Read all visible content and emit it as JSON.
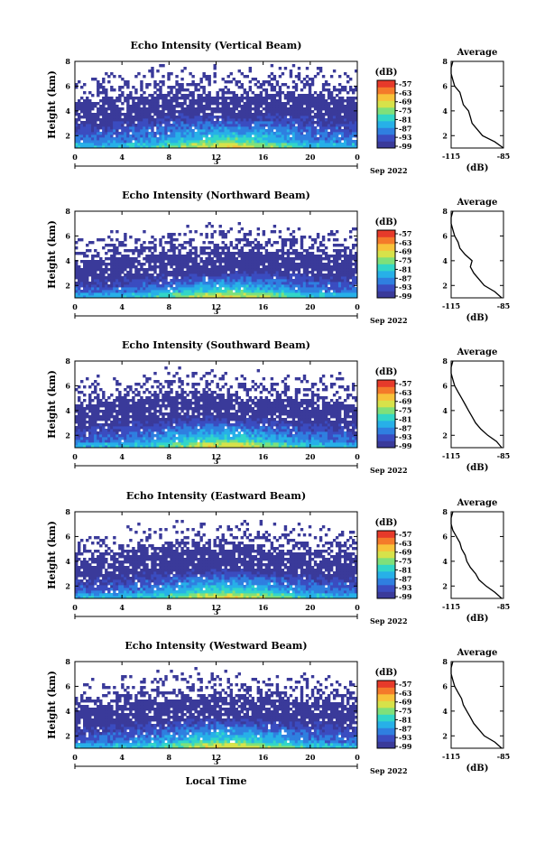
{
  "chart_data": [
    {
      "type": "heatmap",
      "title": "Echo Intensity (Vertical Beam)",
      "ylabel": "Height (km)",
      "xlabel": "",
      "x_ticks": [
        "0",
        "4",
        "8",
        "12",
        "16",
        "20",
        "0"
      ],
      "y_ticks": [
        "2",
        "4",
        "6",
        "8"
      ],
      "date_marker": "3",
      "date_label": "Sep 2022",
      "xlim": [
        0,
        24
      ],
      "ylim": [
        1,
        8
      ],
      "colorbar": {
        "unit": "(dB)",
        "ticks": [
          "-57",
          "-63",
          "-69",
          "-75",
          "-81",
          "-87",
          "-93",
          "-99"
        ]
      },
      "base_level": [
        3.05,
        3.1,
        3.2,
        3.3,
        3.4,
        3.5,
        3.6,
        3.7,
        3.75,
        3.8,
        3.75,
        3.7,
        3.65,
        3.6,
        3.55,
        3.6,
        3.7,
        3.8,
        3.85,
        3.8,
        3.7,
        3.6,
        3.55,
        3.5,
        3.45
      ],
      "average": {
        "title": "Average",
        "xlabel": "(dB)",
        "x_ticks": [
          "-115",
          "-85"
        ],
        "xlim": [
          -115,
          -85
        ],
        "y_ticks": [
          "2",
          "4",
          "6",
          "8"
        ],
        "ylim": [
          1,
          8
        ],
        "height_km": [
          1.0,
          1.5,
          2.0,
          2.5,
          3.0,
          3.5,
          4.0,
          4.5,
          5.0,
          5.5,
          6.0,
          6.5,
          7.0,
          7.5,
          8.0
        ],
        "db": [
          -85,
          -90,
          -97,
          -100,
          -103,
          -104,
          -105,
          -108,
          -109,
          -110,
          -113,
          -114,
          -115,
          -115,
          -114
        ]
      }
    },
    {
      "type": "heatmap",
      "title": "Echo Intensity (Northward Beam)",
      "ylabel": "Height (km)",
      "xlabel": "",
      "x_ticks": [
        "0",
        "4",
        "8",
        "12",
        "16",
        "20",
        "0"
      ],
      "y_ticks": [
        "2",
        "4",
        "6",
        "8"
      ],
      "date_marker": "3",
      "date_label": "Sep 2022",
      "xlim": [
        0,
        24
      ],
      "ylim": [
        1,
        8
      ],
      "colorbar": {
        "unit": "(dB)",
        "ticks": [
          "-57",
          "-63",
          "-69",
          "-75",
          "-81",
          "-87",
          "-93",
          "-99"
        ]
      },
      "base_level": [
        2.3,
        2.4,
        2.5,
        2.6,
        2.7,
        2.75,
        2.8,
        2.85,
        2.9,
        2.95,
        3.0,
        3.05,
        3.1,
        3.15,
        3.2,
        3.2,
        3.15,
        3.1,
        3.05,
        3.0,
        2.95,
        2.9,
        2.85,
        2.8,
        2.75
      ],
      "average": {
        "title": "Average",
        "xlabel": "(dB)",
        "x_ticks": [
          "-115",
          "-85"
        ],
        "xlim": [
          -115,
          -85
        ],
        "y_ticks": [
          "2",
          "4",
          "6",
          "8"
        ],
        "ylim": [
          1,
          8
        ],
        "height_km": [
          1.0,
          1.5,
          2.0,
          2.5,
          3.0,
          3.5,
          4.0,
          4.5,
          5.0,
          5.5,
          6.0,
          6.5,
          7.0,
          7.5,
          8.0
        ],
        "db": [
          -86,
          -90,
          -96,
          -99,
          -102,
          -104,
          -103,
          -107,
          -110,
          -111,
          -113,
          -114,
          -115,
          -115,
          -114
        ]
      }
    },
    {
      "type": "heatmap",
      "title": "Echo Intensity (Southward Beam)",
      "ylabel": "Height (km)",
      "xlabel": "",
      "x_ticks": [
        "0",
        "4",
        "8",
        "12",
        "16",
        "20",
        "0"
      ],
      "y_ticks": [
        "2",
        "4",
        "6",
        "8"
      ],
      "date_marker": "3",
      "date_label": "Sep 2022",
      "xlim": [
        0,
        24
      ],
      "ylim": [
        1,
        8
      ],
      "colorbar": {
        "unit": "(dB)",
        "ticks": [
          "-57",
          "-63",
          "-69",
          "-75",
          "-81",
          "-87",
          "-93",
          "-99"
        ]
      },
      "base_level": [
        2.7,
        2.8,
        2.9,
        3.0,
        3.1,
        3.2,
        3.3,
        3.4,
        3.5,
        3.55,
        3.6,
        3.6,
        3.55,
        3.5,
        3.45,
        3.4,
        3.35,
        3.3,
        3.25,
        3.2,
        3.15,
        3.1,
        3.05,
        3.0,
        2.95
      ],
      "average": {
        "title": "Average",
        "xlabel": "(dB)",
        "x_ticks": [
          "-115",
          "-85"
        ],
        "xlim": [
          -115,
          -85
        ],
        "y_ticks": [
          "2",
          "4",
          "6",
          "8"
        ],
        "ylim": [
          1,
          8
        ],
        "height_km": [
          1.0,
          1.5,
          2.0,
          2.5,
          3.0,
          3.5,
          4.0,
          4.5,
          5.0,
          5.5,
          6.0,
          6.5,
          7.0,
          7.5,
          8.0
        ],
        "db": [
          -86,
          -89,
          -94,
          -98,
          -101,
          -103,
          -105,
          -107,
          -109,
          -111,
          -113,
          -114,
          -115,
          -115,
          -114
        ]
      }
    },
    {
      "type": "heatmap",
      "title": "Echo Intensity (Eastward Beam)",
      "ylabel": "Height (km)",
      "xlabel": "",
      "x_ticks": [
        "0",
        "4",
        "8",
        "12",
        "16",
        "20",
        "0"
      ],
      "y_ticks": [
        "2",
        "4",
        "6",
        "8"
      ],
      "date_marker": "3",
      "date_label": "Sep 2022",
      "xlim": [
        0,
        24
      ],
      "ylim": [
        1,
        8
      ],
      "colorbar": {
        "unit": "(dB)",
        "ticks": [
          "-57",
          "-63",
          "-69",
          "-75",
          "-81",
          "-87",
          "-93",
          "-99"
        ]
      },
      "base_level": [
        2.5,
        2.6,
        2.7,
        2.8,
        2.9,
        3.0,
        3.1,
        3.2,
        3.25,
        3.3,
        3.35,
        3.4,
        3.4,
        3.35,
        3.3,
        3.3,
        3.25,
        3.2,
        3.15,
        3.1,
        3.05,
        3.0,
        2.95,
        2.9,
        2.85
      ],
      "average": {
        "title": "Average",
        "xlabel": "(dB)",
        "x_ticks": [
          "-115",
          "-85"
        ],
        "xlim": [
          -115,
          -85
        ],
        "y_ticks": [
          "2",
          "4",
          "6",
          "8"
        ],
        "ylim": [
          1,
          8
        ],
        "height_km": [
          1.0,
          1.5,
          2.0,
          2.5,
          3.0,
          3.5,
          4.0,
          4.5,
          5.0,
          5.5,
          6.0,
          6.5,
          7.0,
          7.5,
          8.0
        ],
        "db": [
          -86,
          -90,
          -95,
          -99,
          -101,
          -104,
          -106,
          -107,
          -109,
          -110,
          -112,
          -114,
          -115,
          -115,
          -114
        ]
      }
    },
    {
      "type": "heatmap",
      "title": "Echo Intensity (Westward Beam)",
      "ylabel": "Height (km)",
      "xlabel": "Local Time",
      "x_ticks": [
        "0",
        "4",
        "8",
        "12",
        "16",
        "20",
        "0"
      ],
      "y_ticks": [
        "2",
        "4",
        "6",
        "8"
      ],
      "date_marker": "3",
      "date_label": "Sep 2022",
      "xlim": [
        0,
        24
      ],
      "ylim": [
        1,
        8
      ],
      "colorbar": {
        "unit": "(dB)",
        "ticks": [
          "-57",
          "-63",
          "-69",
          "-75",
          "-81",
          "-87",
          "-93",
          "-99"
        ]
      },
      "base_level": [
        2.6,
        2.7,
        2.8,
        2.9,
        3.0,
        3.1,
        3.2,
        3.3,
        3.35,
        3.4,
        3.45,
        3.5,
        3.5,
        3.45,
        3.4,
        3.4,
        3.35,
        3.3,
        3.25,
        3.2,
        3.15,
        3.1,
        3.05,
        3.0,
        2.95
      ],
      "average": {
        "title": "Average",
        "xlabel": "(dB)",
        "x_ticks": [
          "-115",
          "-85"
        ],
        "xlim": [
          -115,
          -85
        ],
        "y_ticks": [
          "2",
          "4",
          "6",
          "8"
        ],
        "ylim": [
          1,
          8
        ],
        "height_km": [
          1.0,
          1.5,
          2.0,
          2.5,
          3.0,
          3.5,
          4.0,
          4.5,
          5.0,
          5.5,
          6.0,
          6.5,
          7.0,
          7.5,
          8.0
        ],
        "db": [
          -86,
          -90,
          -96,
          -99,
          -102,
          -104,
          -106,
          -108,
          -109,
          -111,
          -113,
          -114,
          -115,
          -115,
          -114
        ]
      }
    }
  ],
  "colors": {
    "scale": [
      "#3a3a9a",
      "#3b4cc0",
      "#2f7fe0",
      "#27b0e8",
      "#32d6c8",
      "#7fe07a",
      "#d7e24a",
      "#f8c23a",
      "#f47a2a",
      "#e63a2a"
    ],
    "no_data": "#ffffff",
    "frame": "#000000"
  }
}
